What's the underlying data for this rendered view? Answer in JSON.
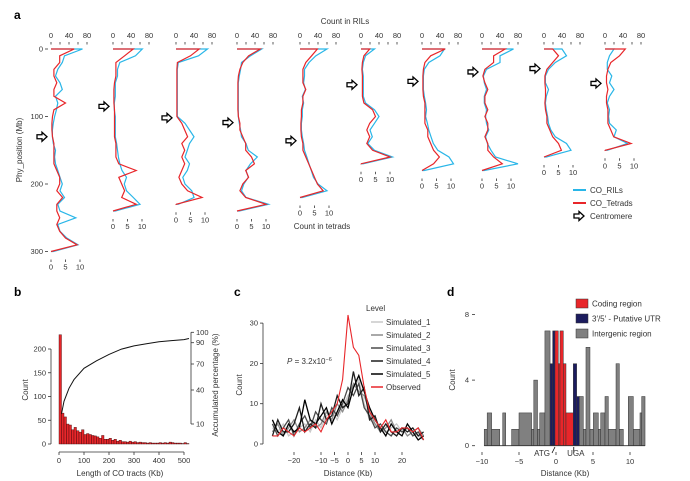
{
  "panel_labels": [
    "a",
    "b",
    "c",
    "d"
  ],
  "chart_data": [
    {
      "panel": "a",
      "type": "line",
      "top_axis_label": "Count in RILs",
      "bottom_axis_label": "Count in tetrads",
      "ylabel": "Phy_position (Mb)",
      "yticks": [
        0,
        100,
        200,
        300
      ],
      "top_ticks": [
        0,
        40,
        80
      ],
      "top_range": [
        0,
        80
      ],
      "bottom_ticks": [
        0,
        5,
        10
      ],
      "bottom_range": [
        0,
        10
      ],
      "bin_mb": 10,
      "colors": {
        "CO_RILs": "#29b6e8",
        "CO_Tetrads": "#e8262a"
      },
      "legend": [
        "CO_RILs",
        "CO_Tetrads",
        "Centromere"
      ],
      "chromosomes": [
        {
          "length": 300,
          "centromere": 130,
          "ril": [
            70,
            30,
            25,
            15,
            10,
            20,
            25,
            10,
            15,
            12,
            8,
            5,
            3,
            3,
            5,
            10,
            8,
            10,
            15,
            20,
            25,
            20,
            30,
            15,
            20,
            55,
            15,
            20,
            35,
            60,
            5
          ],
          "tetrad": [
            8,
            3,
            3,
            1,
            1,
            2,
            1,
            1,
            5,
            1,
            0.5,
            0.3,
            0.3,
            0.5,
            1,
            1,
            1,
            1,
            2,
            3,
            3,
            2,
            4,
            2,
            2,
            3,
            2,
            3,
            5,
            9,
            0
          ]
        },
        {
          "length": 240,
          "centromere": 85,
          "ril": [
            65,
            50,
            15,
            10,
            10,
            5,
            5,
            5,
            3,
            3,
            5,
            5,
            5,
            5,
            8,
            10,
            12,
            15,
            20,
            30,
            25,
            30,
            45,
            60,
            5
          ],
          "tetrad": [
            7,
            4,
            1,
            1,
            1,
            0.5,
            0.3,
            0.3,
            0.3,
            0.5,
            0.5,
            0.5,
            0.5,
            0.5,
            1,
            1,
            1,
            2,
            8,
            2,
            3,
            4,
            3,
            8,
            0
          ]
        },
        {
          "length": 230,
          "centromere": 102,
          "ril": [
            70,
            50,
            5,
            3,
            3,
            3,
            3,
            3,
            3,
            3,
            3,
            20,
            30,
            40,
            30,
            25,
            20,
            30,
            25,
            15,
            20,
            35,
            40,
            5
          ],
          "tetrad": [
            8,
            5,
            0.5,
            0.3,
            0.3,
            0.3,
            0.3,
            0.3,
            0.3,
            0.3,
            0.3,
            2,
            3,
            4,
            2,
            3,
            2,
            3,
            2,
            1,
            2,
            4,
            9,
            0
          ]
        },
        {
          "length": 240,
          "centromere": 109,
          "ril": [
            55,
            30,
            10,
            8,
            5,
            3,
            3,
            3,
            3,
            3,
            3,
            5,
            8,
            10,
            20,
            25,
            45,
            30,
            20,
            25,
            15,
            10,
            20,
            70,
            5
          ],
          "tetrad": [
            8,
            4,
            2,
            1,
            0.5,
            0.3,
            0.3,
            0.3,
            0.3,
            0.3,
            0.5,
            1,
            1,
            2,
            3,
            3,
            5,
            6,
            3,
            4,
            2,
            1,
            3,
            10,
            0
          ]
        },
        {
          "length": 220,
          "centromere": 136,
          "ril": [
            60,
            35,
            20,
            10,
            10,
            8,
            12,
            5,
            8,
            5,
            5,
            3,
            3,
            5,
            8,
            10,
            15,
            20,
            25,
            30,
            40,
            60,
            5
          ],
          "tetrad": [
            6,
            4,
            2,
            1,
            1,
            1,
            2,
            1,
            1,
            0.5,
            0.5,
            0.3,
            0.3,
            0.5,
            1,
            1,
            2,
            3,
            4,
            5,
            6,
            8,
            0
          ]
        },
        {
          "length": 170,
          "centromere": 53,
          "ril": [
            30,
            10,
            5,
            3,
            5,
            5,
            5,
            5,
            10,
            30,
            40,
            30,
            20,
            25,
            15,
            30,
            70,
            5
          ],
          "tetrad": [
            3,
            1,
            0.5,
            0.3,
            0.5,
            0.5,
            0.5,
            0.5,
            1,
            4,
            5,
            3,
            2,
            3,
            2,
            4,
            10,
            0
          ]
        },
        {
          "length": 180,
          "centromere": 48,
          "ril": [
            50,
            40,
            15,
            5,
            3,
            3,
            3,
            5,
            8,
            10,
            8,
            12,
            15,
            20,
            25,
            35,
            60,
            70,
            5
          ],
          "tetrad": [
            8,
            3,
            1,
            0.5,
            0.3,
            0.3,
            0.3,
            0.5,
            1,
            1,
            1,
            1,
            2,
            2,
            3,
            4,
            6,
            4,
            0
          ]
        },
        {
          "length": 180,
          "centromere": 34,
          "ril": [
            70,
            40,
            40,
            10,
            3,
            5,
            10,
            5,
            5,
            10,
            8,
            10,
            15,
            8,
            12,
            20,
            30,
            80,
            5
          ],
          "tetrad": [
            8,
            4,
            4,
            1,
            0.3,
            1,
            2,
            1,
            1,
            2,
            1,
            2,
            2,
            1,
            2,
            2,
            4,
            7,
            0
          ]
        },
        {
          "length": 160,
          "centromere": 29,
          "ril": [
            40,
            50,
            25,
            10,
            3,
            3,
            10,
            5,
            3,
            5,
            8,
            10,
            15,
            25,
            50,
            60,
            5
          ],
          "tetrad": [
            3,
            5,
            3,
            1,
            0.3,
            0.3,
            0.5,
            0.5,
            0.3,
            0.5,
            1,
            1,
            2,
            3,
            5,
            6,
            0
          ]
        },
        {
          "length": 150,
          "centromere": 51,
          "ril": [
            20,
            10,
            5,
            5,
            15,
            10,
            20,
            10,
            5,
            10,
            8,
            10,
            25,
            20,
            50,
            5
          ],
          "tetrad": [
            7,
            5,
            2,
            1,
            0.5,
            0.5,
            1,
            0.5,
            0.5,
            1,
            1,
            1,
            2,
            3,
            9,
            0
          ]
        }
      ]
    },
    {
      "panel": "b",
      "type": "bar",
      "xlabel": "Length of CO tracts (Kb)",
      "ylabel": "Count",
      "y2label": "Accumulated percentage (%)",
      "xticks": [
        0,
        100,
        200,
        300,
        400,
        500
      ],
      "yticks": [
        0,
        50,
        100,
        150,
        200
      ],
      "y2ticks": [
        10,
        40,
        70,
        90,
        100
      ],
      "bin_width_kb": 10,
      "bar_color": "#e8262a",
      "counts": [
        230,
        65,
        57,
        42,
        40,
        30,
        35,
        28,
        25,
        30,
        20,
        22,
        20,
        18,
        17,
        15,
        12,
        18,
        10,
        10,
        12,
        8,
        10,
        6,
        8,
        5,
        5,
        4,
        6,
        4,
        5,
        3,
        4,
        3,
        3,
        2,
        3,
        2,
        2,
        2,
        3,
        2,
        3,
        2,
        4,
        3,
        2,
        2,
        2,
        1,
        3,
        1
      ],
      "accumulated": {
        "x": [
          10,
          20,
          40,
          60,
          100,
          150,
          200,
          250,
          300,
          350,
          400,
          450,
          500,
          520
        ],
        "y": [
          19,
          30,
          42,
          52,
          65,
          73,
          79,
          84,
          87,
          89,
          91,
          92,
          93,
          94
        ]
      }
    },
    {
      "panel": "c",
      "type": "line",
      "xlabel": "Distance (Kb)",
      "ylabel": "Count",
      "xticks": [
        -20,
        -10,
        -5,
        0,
        5,
        10,
        20
      ],
      "yticks": [
        0,
        10,
        20,
        30
      ],
      "annotation": {
        "prefix": "P",
        "text": " = 3.2x10",
        "exp": "−6"
      },
      "legend_title": "Level",
      "x": [
        -28,
        -26,
        -24,
        -22,
        -20,
        -18,
        -16,
        -14,
        -12,
        -10,
        -8,
        -6,
        -4,
        -2,
        0,
        2,
        4,
        6,
        8,
        10,
        12,
        14,
        16,
        18,
        20,
        22,
        24,
        26,
        28
      ],
      "series": [
        {
          "name": "Simulated_1",
          "color": "#c8c8c8",
          "values": [
            4,
            3,
            5,
            2,
            3,
            4,
            5,
            3,
            6,
            4,
            7,
            8,
            6,
            9,
            12,
            14,
            16,
            10,
            6,
            5,
            4,
            3,
            4,
            5,
            3,
            4,
            3,
            2,
            1
          ]
        },
        {
          "name": "Simulated_2",
          "color": "#8c8c8c",
          "values": [
            3,
            5,
            2,
            4,
            6,
            3,
            4,
            6,
            4,
            5,
            8,
            6,
            10,
            8,
            11,
            15,
            13,
            12,
            8,
            5,
            3,
            4,
            6,
            3,
            4,
            2,
            3,
            4,
            2
          ]
        },
        {
          "name": "Simulated_3",
          "color": "#4a4a4a",
          "values": [
            5,
            2,
            4,
            6,
            2,
            5,
            7,
            4,
            8,
            6,
            5,
            9,
            7,
            10,
            14,
            12,
            15,
            9,
            7,
            4,
            5,
            3,
            2,
            4,
            3,
            4,
            2,
            3,
            1
          ]
        },
        {
          "name": "Simulated_4",
          "color": "#1e1e1e",
          "values": [
            2,
            6,
            3,
            3,
            5,
            9,
            3,
            5,
            4,
            10,
            6,
            7,
            12,
            9,
            10,
            18,
            12,
            14,
            6,
            7,
            3,
            5,
            3,
            2,
            4,
            3,
            4,
            2,
            3
          ]
        },
        {
          "name": "Simulated_5",
          "color": "#000000",
          "values": [
            6,
            3,
            2,
            5,
            3,
            4,
            11,
            6,
            5,
            7,
            9,
            5,
            8,
            11,
            9,
            14,
            17,
            13,
            9,
            6,
            4,
            2,
            5,
            3,
            2,
            5,
            3,
            1,
            2
          ]
        },
        {
          "name": "Observed",
          "color": "#e8262a",
          "values": [
            2,
            2,
            4,
            3,
            2,
            4,
            3,
            4,
            5,
            3,
            6,
            8,
            10,
            16,
            32,
            24,
            22,
            14,
            8,
            6,
            4,
            6,
            3,
            3,
            4,
            4,
            3,
            4,
            1
          ]
        }
      ]
    },
    {
      "panel": "d",
      "type": "bar",
      "xlabel": "Distance (Kb)",
      "ylabel": "Count",
      "xticks": [
        -10,
        -5,
        0,
        5,
        10
      ],
      "yticks": [
        0,
        4,
        8
      ],
      "markers": [
        {
          "label": "ATG",
          "x": 0
        },
        {
          "label": "UGA",
          "x": 2.4
        }
      ],
      "legend": [
        {
          "key": "coding",
          "label": "Coding region",
          "color": "#e8262a"
        },
        {
          "key": "utr",
          "label": "3′/5′ - Putative UTR",
          "color": "#1c1c5e"
        },
        {
          "key": "intergenic",
          "label": "Intergenic region",
          "color": "#808080"
        }
      ],
      "bars": [
        [
          -9.7,
          -9.3,
          1,
          "intergenic"
        ],
        [
          -9.3,
          -8.7,
          2,
          "intergenic"
        ],
        [
          -8.7,
          -7.6,
          1,
          "intergenic"
        ],
        [
          -7.2,
          -6.8,
          2,
          "intergenic"
        ],
        [
          -6.0,
          -5.0,
          1,
          "intergenic"
        ],
        [
          -5.0,
          -3.3,
          2,
          "intergenic"
        ],
        [
          -3.3,
          -3.0,
          1,
          "intergenic"
        ],
        [
          -3.0,
          -2.5,
          4,
          "intergenic"
        ],
        [
          -2.5,
          -2.2,
          1,
          "intergenic"
        ],
        [
          -2.2,
          -1.5,
          2,
          "intergenic"
        ],
        [
          -1.5,
          -0.8,
          7,
          "intergenic"
        ],
        [
          -0.8,
          -0.45,
          5,
          "utr"
        ],
        [
          -0.45,
          -0.14,
          7,
          "utr"
        ],
        [
          -0.14,
          0.31,
          7,
          "coding"
        ],
        [
          0.31,
          0.54,
          5,
          "coding"
        ],
        [
          0.54,
          0.99,
          7,
          "coding"
        ],
        [
          0.99,
          1.35,
          5,
          "coding"
        ],
        [
          1.35,
          2.34,
          2,
          "coding"
        ],
        [
          2.34,
          2.79,
          5,
          "utr"
        ],
        [
          2.79,
          3.15,
          3,
          "utr"
        ],
        [
          3.15,
          3.69,
          3,
          "intergenic"
        ],
        [
          3.69,
          4.05,
          1,
          "intergenic"
        ],
        [
          4.05,
          4.59,
          6,
          "intergenic"
        ],
        [
          4.59,
          5.05,
          1,
          "intergenic"
        ],
        [
          5.05,
          5.72,
          2,
          "intergenic"
        ],
        [
          5.72,
          6.04,
          1,
          "intergenic"
        ],
        [
          6.04,
          6.62,
          2,
          "intergenic"
        ],
        [
          6.62,
          7.07,
          3,
          "intergenic"
        ],
        [
          7.07,
          8.11,
          1,
          "intergenic"
        ],
        [
          8.11,
          8.56,
          5,
          "intergenic"
        ],
        [
          8.56,
          9.1,
          1,
          "intergenic"
        ],
        [
          9.77,
          10.45,
          3,
          "intergenic"
        ],
        [
          10.45,
          11.35,
          1,
          "intergenic"
        ],
        [
          11.35,
          11.58,
          2,
          "intergenic"
        ],
        [
          11.58,
          12.03,
          3,
          "intergenic"
        ]
      ]
    }
  ]
}
